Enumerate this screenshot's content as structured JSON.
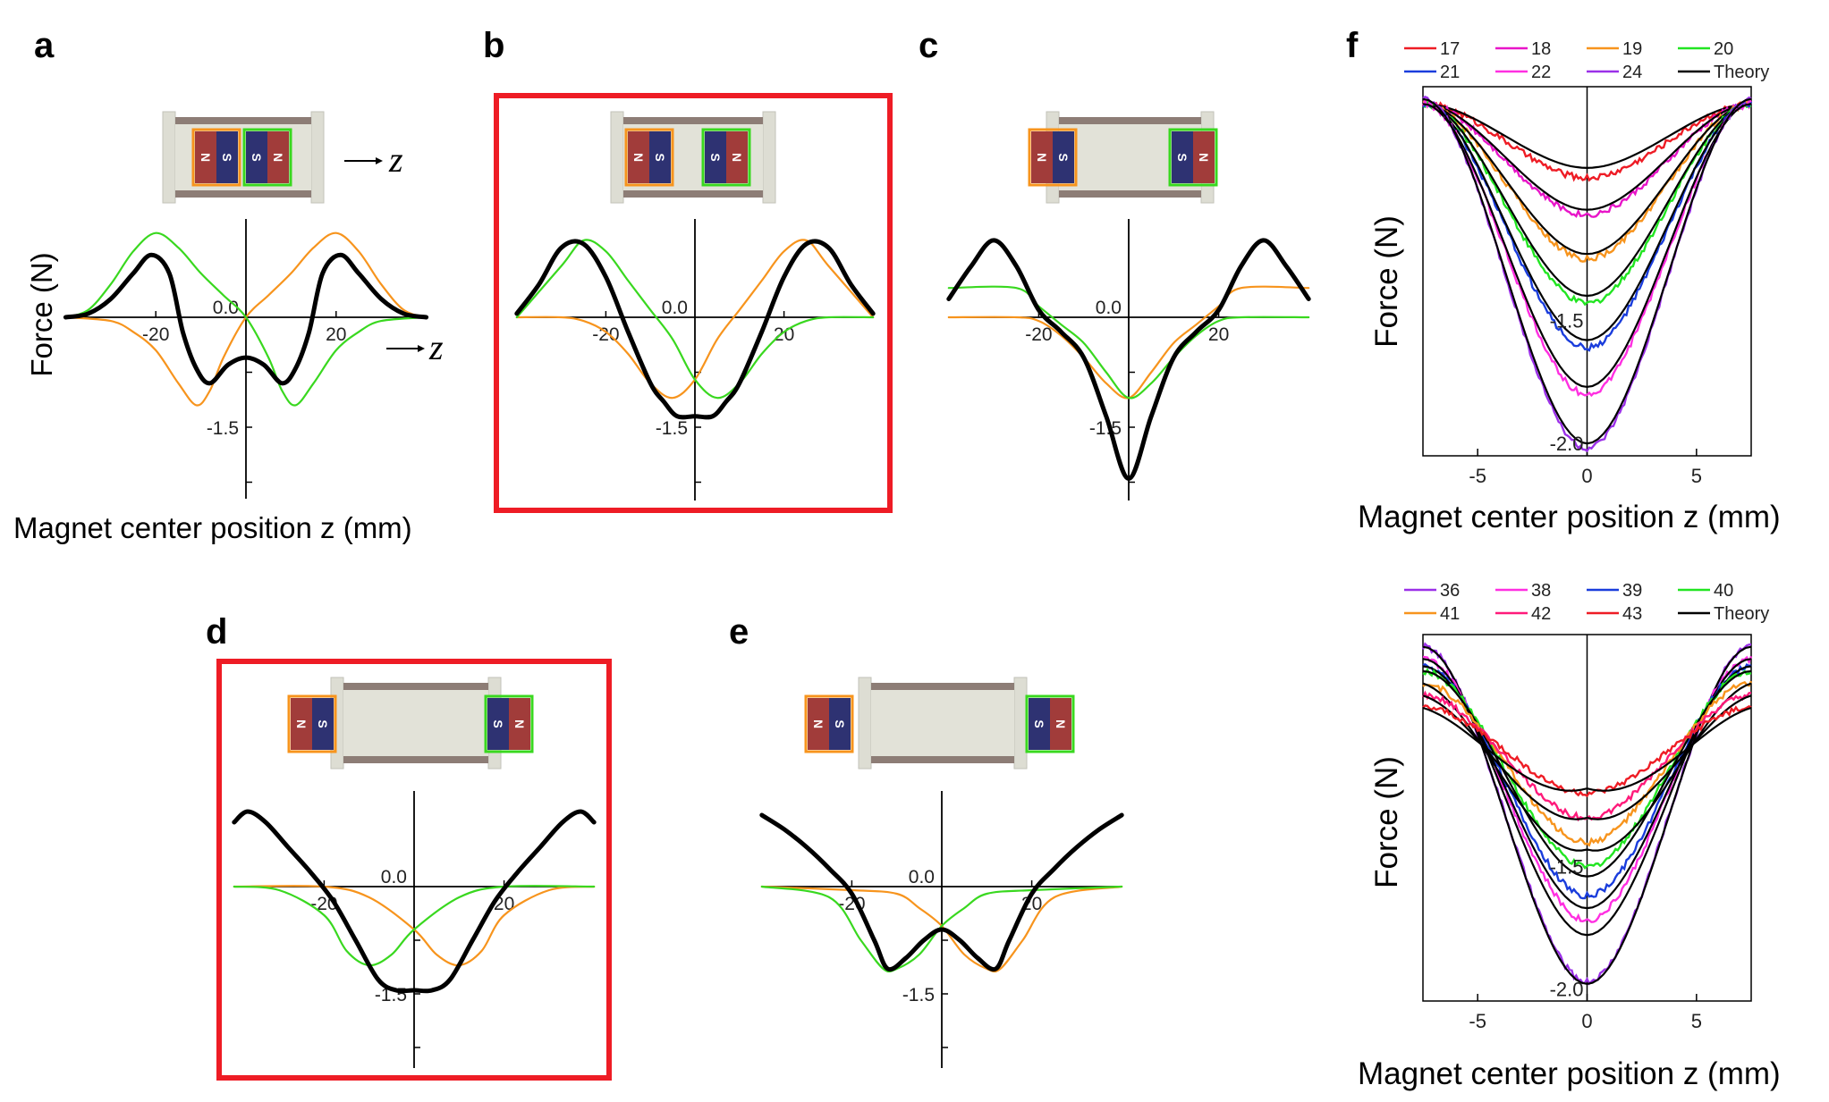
{
  "panels": [
    {
      "id": "a",
      "label": "a",
      "highlight": false,
      "xlabel": "Magnet center position z (mm)",
      "ylabel": "Force (N)",
      "arrow_label": "z"
    },
    {
      "id": "b",
      "label": "b",
      "highlight": true
    },
    {
      "id": "c",
      "label": "c",
      "highlight": false
    },
    {
      "id": "d",
      "label": "d",
      "highlight": true
    },
    {
      "id": "e",
      "label": "e",
      "highlight": false
    },
    {
      "id": "f",
      "label": "f",
      "highlight": false
    }
  ],
  "magnet_letters": {
    "north": "N",
    "south": "S"
  },
  "colors": {
    "magnet_north": "#a13c3a",
    "magnet_south": "#2e3272",
    "orange": "#f7941d",
    "green": "#39d81f",
    "total": "#000000",
    "highlight": "#ee1c25",
    "legend_top": [
      "#ee1c25",
      "#e815c8",
      "#f7941d",
      "#22e522",
      "#1a3ddc",
      "#ff2fe1",
      "#9b30e8",
      "#000000"
    ],
    "legend_bottom": [
      "#9b30e8",
      "#ff2fe1",
      "#1a3ddc",
      "#22e522",
      "#f7941d",
      "#ff1a7a",
      "#ee1c25",
      "#000000"
    ]
  },
  "chart_data": [
    {
      "panel": "a",
      "type": "line",
      "x_ticks": [
        "-20",
        "20"
      ],
      "y_ticks": [
        "0.0",
        "-1.5"
      ],
      "xlabel": "Magnet center position z (mm)",
      "ylabel": "Force (N)",
      "xlim": [
        -40,
        40
      ],
      "ylim": [
        -2.4,
        1.2
      ],
      "series": [
        {
          "color": "orange",
          "x": [
            -40,
            -30,
            -25,
            -20,
            -15,
            -11,
            -8,
            -5,
            0,
            5,
            10,
            15,
            20,
            25,
            30,
            35,
            40
          ],
          "y": [
            0,
            -0.05,
            -0.2,
            -0.45,
            -0.9,
            -1.2,
            -1.0,
            -0.55,
            0,
            0.3,
            0.6,
            0.95,
            1.15,
            0.9,
            0.45,
            0.1,
            0
          ]
        },
        {
          "color": "green",
          "x": [
            -40,
            -35,
            -30,
            -25,
            -20,
            -15,
            -10,
            -5,
            0,
            5,
            8,
            11,
            15,
            20,
            25,
            30,
            40
          ],
          "y": [
            0,
            0.1,
            0.45,
            0.9,
            1.15,
            0.95,
            0.6,
            0.3,
            0,
            -0.55,
            -1.0,
            -1.2,
            -0.9,
            -0.45,
            -0.2,
            -0.05,
            0
          ]
        },
        {
          "color": "total",
          "x": [
            -40,
            -35,
            -30,
            -25,
            -21,
            -17,
            -14,
            -11,
            -8,
            -4,
            0,
            4,
            8,
            11,
            14,
            17,
            21,
            25,
            30,
            35,
            40
          ],
          "y": [
            0,
            0.05,
            0.25,
            0.6,
            0.85,
            0.6,
            -0.2,
            -0.7,
            -0.9,
            -0.65,
            -0.55,
            -0.65,
            -0.9,
            -0.7,
            -0.2,
            0.6,
            0.85,
            0.6,
            0.25,
            0.05,
            0
          ]
        }
      ]
    },
    {
      "panel": "b",
      "type": "line",
      "x_ticks": [
        "-20",
        "20"
      ],
      "y_ticks": [
        "0.0",
        "-1.5"
      ],
      "xlim": [
        -40,
        40
      ],
      "ylim": [
        -2.4,
        1.2
      ],
      "series": [
        {
          "color": "orange",
          "x": [
            -40,
            -30,
            -25,
            -20,
            -15,
            -10,
            -5,
            0,
            5,
            10,
            15,
            20,
            25,
            30,
            40
          ],
          "y": [
            0,
            0,
            -0.05,
            -0.2,
            -0.5,
            -0.9,
            -1.1,
            -0.85,
            -0.3,
            0.1,
            0.5,
            0.9,
            1.05,
            0.7,
            0
          ]
        },
        {
          "color": "green",
          "x": [
            -40,
            -30,
            -25,
            -20,
            -15,
            -10,
            -5,
            0,
            5,
            10,
            15,
            20,
            25,
            30,
            40
          ],
          "y": [
            0,
            0.7,
            1.05,
            0.9,
            0.5,
            0.1,
            -0.3,
            -0.85,
            -1.1,
            -0.9,
            -0.5,
            -0.2,
            -0.05,
            0,
            0
          ]
        },
        {
          "color": "total",
          "x": [
            -40,
            -35,
            -30,
            -25,
            -20,
            -15,
            -10,
            -7,
            -4,
            0,
            4,
            7,
            10,
            15,
            20,
            25,
            30,
            35,
            40
          ],
          "y": [
            0.05,
            0.45,
            0.95,
            1.0,
            0.55,
            -0.2,
            -0.9,
            -1.15,
            -1.35,
            -1.35,
            -1.35,
            -1.15,
            -0.9,
            -0.2,
            0.55,
            1.0,
            0.95,
            0.45,
            0.05
          ]
        }
      ]
    },
    {
      "panel": "c",
      "type": "line",
      "x_ticks": [
        "-20",
        "20"
      ],
      "y_ticks": [
        "0.0",
        "-1.5"
      ],
      "xlim": [
        -40,
        40
      ],
      "ylim": [
        -2.4,
        1.2
      ],
      "series": [
        {
          "color": "orange",
          "x": [
            -40,
            -25,
            -20,
            -15,
            -10,
            -5,
            0,
            5,
            10,
            15,
            20,
            25,
            40
          ],
          "y": [
            0,
            0,
            -0.05,
            -0.25,
            -0.55,
            -0.9,
            -1.1,
            -0.75,
            -0.35,
            -0.1,
            0.15,
            0.4,
            0.4
          ]
        },
        {
          "color": "green",
          "x": [
            -40,
            -25,
            -20,
            -15,
            -10,
            -5,
            0,
            5,
            10,
            15,
            20,
            25,
            40
          ],
          "y": [
            0.4,
            0.4,
            0.15,
            -0.1,
            -0.35,
            -0.75,
            -1.1,
            -0.9,
            -0.55,
            -0.25,
            -0.05,
            0,
            0
          ]
        },
        {
          "color": "total",
          "x": [
            -40,
            -35,
            -30,
            -25,
            -20,
            -15,
            -10,
            -5,
            0,
            5,
            10,
            15,
            20,
            25,
            30,
            35,
            40
          ],
          "y": [
            0.25,
            0.7,
            1.05,
            0.7,
            0.1,
            -0.2,
            -0.55,
            -1.35,
            -2.2,
            -1.35,
            -0.55,
            -0.2,
            0.1,
            0.7,
            1.05,
            0.7,
            0.25
          ]
        }
      ]
    },
    {
      "panel": "d",
      "type": "line",
      "x_ticks": [
        "-20",
        "20"
      ],
      "y_ticks": [
        "0.0",
        "-1.5"
      ],
      "xlim": [
        -40,
        40
      ],
      "ylim": [
        -2.4,
        1.2
      ],
      "series": [
        {
          "color": "orange",
          "x": [
            -40,
            -20,
            -10,
            0,
            5,
            10,
            15,
            20,
            30,
            40
          ],
          "y": [
            0,
            0,
            -0.15,
            -0.6,
            -0.95,
            -1.1,
            -0.9,
            -0.4,
            -0.05,
            0
          ]
        },
        {
          "color": "green",
          "x": [
            -40,
            -30,
            -20,
            -15,
            -10,
            -5,
            0,
            10,
            20,
            40
          ],
          "y": [
            0,
            -0.05,
            -0.4,
            -0.9,
            -1.1,
            -0.95,
            -0.6,
            -0.15,
            0,
            0
          ]
        },
        {
          "color": "total",
          "x": [
            -40,
            -37,
            -33,
            -28,
            -23,
            -18,
            -13,
            -8,
            -4,
            0,
            4,
            8,
            13,
            18,
            23,
            28,
            33,
            37,
            40
          ],
          "y": [
            0.9,
            1.05,
            0.9,
            0.55,
            0.2,
            -0.2,
            -0.75,
            -1.3,
            -1.45,
            -1.45,
            -1.45,
            -1.3,
            -0.75,
            -0.2,
            0.2,
            0.55,
            0.9,
            1.05,
            0.9
          ]
        }
      ]
    },
    {
      "panel": "e",
      "type": "line",
      "x_ticks": [
        "-20",
        "20"
      ],
      "y_ticks": [
        "0.0",
        "-1.5"
      ],
      "xlim": [
        -40,
        40
      ],
      "ylim": [
        -2.4,
        1.2
      ],
      "series": [
        {
          "color": "orange",
          "x": [
            -40,
            -20,
            -10,
            -5,
            0,
            5,
            10,
            13,
            18,
            25,
            40
          ],
          "y": [
            0,
            -0.05,
            -0.1,
            -0.3,
            -0.55,
            -0.95,
            -1.15,
            -1.15,
            -0.75,
            -0.15,
            0
          ]
        },
        {
          "color": "green",
          "x": [
            -40,
            -25,
            -18,
            -13,
            -10,
            -5,
            0,
            5,
            10,
            20,
            40
          ],
          "y": [
            0,
            -0.15,
            -0.75,
            -1.15,
            -1.15,
            -0.95,
            -0.55,
            -0.3,
            -0.1,
            -0.05,
            0
          ]
        },
        {
          "color": "total",
          "x": [
            -40,
            -35,
            -30,
            -25,
            -20,
            -15,
            -12,
            -8,
            -4,
            0,
            4,
            8,
            12,
            15,
            20,
            25,
            30,
            35,
            40
          ],
          "y": [
            1.0,
            0.8,
            0.55,
            0.25,
            -0.1,
            -0.75,
            -1.15,
            -1.0,
            -0.75,
            -0.6,
            -0.75,
            -1.0,
            -1.15,
            -0.75,
            -0.1,
            0.25,
            0.55,
            0.8,
            1.0
          ]
        }
      ]
    },
    {
      "panel": "f-top",
      "type": "line",
      "xlabel": "Magnet center position z (mm)",
      "ylabel": "Force (N)",
      "x_ticks": [
        "-5",
        "0",
        "5"
      ],
      "y_ticks": [
        "-1.5",
        "-2.0"
      ],
      "xlim": [
        -7.5,
        7.5
      ],
      "ylim": [
        -2.05,
        -0.55
      ],
      "legend": [
        "17",
        "18",
        "19",
        "20",
        "21",
        "22",
        "24",
        "Theory"
      ],
      "series": [
        {
          "name": "17",
          "edge": -0.62,
          "center": -0.92
        },
        {
          "name": "18",
          "edge": -0.62,
          "center": -1.07
        },
        {
          "name": "19",
          "edge": -0.62,
          "center": -1.25
        },
        {
          "name": "20",
          "edge": -0.62,
          "center": -1.43
        },
        {
          "name": "21",
          "edge": -0.62,
          "center": -1.61
        },
        {
          "name": "22",
          "edge": -0.62,
          "center": -1.8
        },
        {
          "name": "24",
          "edge": -0.6,
          "center": -2.02
        }
      ],
      "theory_center": [
        -0.88,
        -1.05,
        -1.23,
        -1.4,
        -1.58,
        -1.77,
        -2.0
      ]
    },
    {
      "panel": "f-bottom",
      "type": "line",
      "xlabel": "Magnet center position z (mm)",
      "ylabel": "Force (N)",
      "x_ticks": [
        "-5",
        "0",
        "5"
      ],
      "y_ticks": [
        "-2.0",
        "-1.5"
      ],
      "xlim": [
        -7.5,
        7.5
      ],
      "ylim": [
        -2.05,
        -0.55
      ],
      "legend": [
        "36",
        "38",
        "39",
        "40",
        "41",
        "42",
        "43",
        "Theory"
      ],
      "series": [
        {
          "name": "36",
          "edge": -0.6,
          "center": -1.97
        },
        {
          "name": "38",
          "edge": -0.65,
          "center": -1.72
        },
        {
          "name": "39",
          "edge": -0.68,
          "center": -1.62
        },
        {
          "name": "40",
          "edge": -0.7,
          "center": -1.5
        },
        {
          "name": "41",
          "edge": -0.75,
          "center": -1.4
        },
        {
          "name": "42",
          "edge": -0.8,
          "center": -1.3
        },
        {
          "name": "43",
          "edge": -0.85,
          "center": -1.2
        }
      ],
      "theory_center": [
        -1.98,
        -1.78,
        -1.67,
        -1.54,
        -1.43,
        -1.3,
        -1.18
      ]
    }
  ]
}
